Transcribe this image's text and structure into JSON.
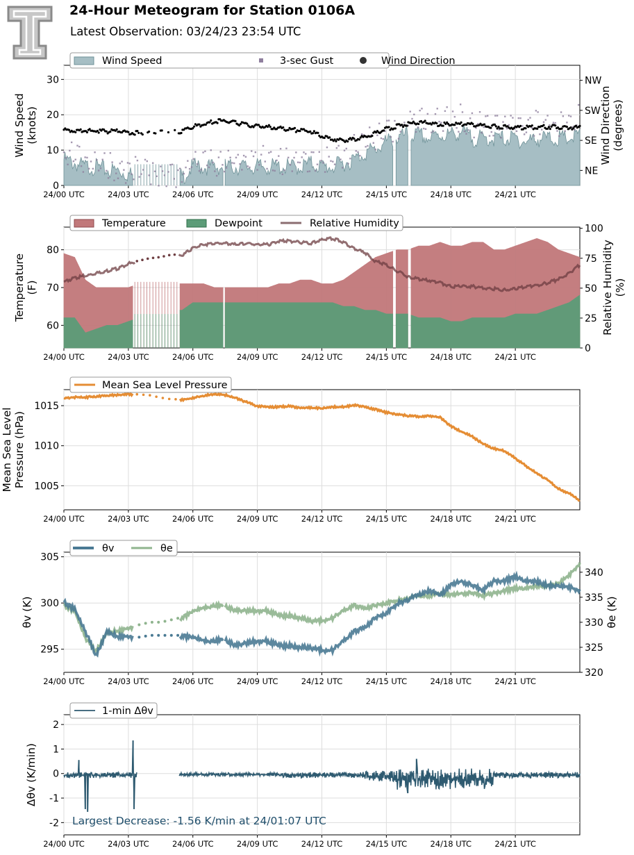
{
  "header": {
    "title": "24-Hour Meteogram for Station 0106A",
    "subtitle": "Latest Observation: 03/24/23 23:54 UTC"
  },
  "colors": {
    "wind_speed": "#a6bec4",
    "wind_speed_line": "#6f9298",
    "gust": "#8f7f9e",
    "wind_direction": "#000000",
    "temperature": "#c1787a",
    "dewpoint": "#5c9c78",
    "relative_humidity": "#6e3e42",
    "pressure": "#e58d34",
    "theta_v": "#4a7a93",
    "theta_e": "#8fb48e",
    "dtheta": "#2e5a70",
    "annotation": "#1f4e6b",
    "grid": "#dddddd"
  },
  "x_tick_labels": [
    "24/00 UTC",
    "24/03 UTC",
    "24/06 UTC",
    "24/09 UTC",
    "24/12 UTC",
    "24/15 UTC",
    "24/18 UTC",
    "24/21 UTC"
  ],
  "chart_data": [
    {
      "type": "area",
      "id": "wind",
      "legend": [
        "Wind Speed",
        "3-sec Gust",
        "Wind Direction"
      ],
      "ylabel": "Wind Speed (knots)",
      "ylabel_lines": [
        "Wind Speed",
        "(knots)"
      ],
      "ylim": [
        0,
        34
      ],
      "yticks": [
        0,
        10,
        20,
        30
      ],
      "y2label_lines": [
        "Wind Direction",
        "(degrees)"
      ],
      "y2lim": [
        0,
        360
      ],
      "y2ticks": [
        {
          "value": 45,
          "label": "NE"
        },
        {
          "value": 135,
          "label": "SE"
        },
        {
          "value": 225,
          "label": "SW"
        },
        {
          "value": 315,
          "label": "NW"
        }
      ],
      "x_hours": [
        0,
        0.5,
        1,
        1.5,
        2,
        2.5,
        3,
        3.5,
        4,
        4.5,
        5,
        5.5,
        6,
        6.5,
        7,
        7.5,
        8,
        8.5,
        9,
        9.5,
        10,
        10.5,
        11,
        11.5,
        12,
        12.5,
        13,
        13.5,
        14,
        14.5,
        15,
        15.5,
        16,
        16.5,
        17,
        17.5,
        18,
        18.5,
        19,
        19.5,
        20,
        20.5,
        21,
        21.5,
        22,
        22.5,
        23,
        23.5,
        24
      ],
      "series": [
        {
          "name": "Wind Speed",
          "values": [
            8,
            7,
            6,
            6,
            5,
            5,
            4,
            3,
            3,
            3,
            3,
            3,
            6,
            6,
            6,
            6,
            6,
            6,
            6,
            6,
            6,
            6,
            6,
            7,
            6,
            6,
            7,
            8,
            10,
            11,
            13,
            14,
            15,
            15,
            14,
            15,
            15,
            16,
            14,
            14,
            14,
            14,
            14,
            13,
            14,
            14,
            14,
            14,
            15
          ]
        },
        {
          "name": "3-sec Gust",
          "values": [
            11,
            10,
            9,
            8,
            7,
            7,
            6,
            6,
            5,
            5,
            5,
            5,
            8,
            8,
            8,
            8,
            8,
            9,
            9,
            9,
            8,
            9,
            9,
            9,
            8,
            9,
            10,
            12,
            14,
            15,
            17,
            18,
            19,
            20,
            19,
            20,
            20,
            21,
            19,
            19,
            19,
            19,
            19,
            18,
            19,
            19,
            19,
            20,
            22
          ]
        },
        {
          "name": "Wind Direction",
          "values": [
            170,
            168,
            166,
            167,
            165,
            165,
            162,
            160,
            160,
            162,
            163,
            165,
            180,
            185,
            195,
            196,
            190,
            185,
            180,
            178,
            175,
            170,
            168,
            165,
            150,
            142,
            138,
            140,
            148,
            160,
            172,
            180,
            188,
            192,
            190,
            185,
            188,
            187,
            185,
            183,
            180,
            178,
            175,
            176,
            178,
            178,
            178,
            177,
            176
          ]
        }
      ],
      "gaps": [
        [
          3.2,
          5.35
        ],
        [
          7.4,
          7.48
        ],
        [
          15.35,
          15.42
        ],
        [
          16.05,
          16.12
        ]
      ]
    },
    {
      "type": "area",
      "id": "temperature",
      "legend": [
        "Temperature",
        "Dewpoint",
        "Relative Humidity"
      ],
      "ylabel_lines": [
        "Temperature",
        "(F)"
      ],
      "ylim": [
        54,
        86
      ],
      "yticks": [
        60,
        70,
        80
      ],
      "y2label_lines": [
        "Relative Humidity",
        "(%)"
      ],
      "y2lim": [
        0,
        101
      ],
      "y2ticks": [
        0,
        25,
        50,
        75,
        100
      ],
      "x_hours": [
        0,
        0.5,
        1,
        1.5,
        2,
        2.5,
        3,
        3.5,
        4,
        4.5,
        5,
        5.5,
        6,
        6.5,
        7,
        7.5,
        8,
        8.5,
        9,
        9.5,
        10,
        10.5,
        11,
        11.5,
        12,
        12.5,
        13,
        13.5,
        14,
        14.5,
        15,
        15.5,
        16,
        16.5,
        17,
        17.5,
        18,
        18.5,
        19,
        19.5,
        20,
        20.5,
        21,
        21.5,
        22,
        22.5,
        23,
        23.5,
        24
      ],
      "series": [
        {
          "name": "Temperature",
          "values": [
            79,
            78,
            72,
            70,
            70,
            70,
            70,
            71,
            71,
            71,
            71,
            71,
            71,
            71,
            70,
            70,
            70,
            70,
            70,
            70,
            71,
            71,
            72,
            72,
            71,
            71,
            72,
            74,
            76,
            78,
            79,
            80,
            80,
            81,
            81,
            82,
            81,
            81,
            82,
            82,
            80,
            80,
            81,
            82,
            83,
            82,
            80,
            79,
            78
          ]
        },
        {
          "name": "Dewpoint",
          "values": [
            62,
            62,
            58,
            59,
            60,
            60,
            61,
            62,
            63,
            64,
            64,
            64,
            66,
            66,
            66,
            66,
            66,
            66,
            66,
            66,
            66,
            66,
            66,
            66,
            66,
            66,
            65,
            65,
            64,
            64,
            63,
            63,
            63,
            62,
            62,
            62,
            61,
            61,
            62,
            62,
            62,
            62,
            63,
            63,
            63,
            64,
            65,
            66,
            68
          ]
        },
        {
          "name": "Relative Humidity",
          "values": [
            56,
            59,
            61,
            63,
            65,
            67,
            71,
            73,
            75,
            76,
            78,
            78,
            84,
            87,
            88,
            88,
            87,
            88,
            87,
            87,
            90,
            90,
            89,
            88,
            91,
            92,
            89,
            84,
            80,
            73,
            70,
            65,
            60,
            58,
            57,
            55,
            52,
            52,
            52,
            51,
            50,
            49,
            50,
            52,
            53,
            55,
            58,
            63,
            70
          ]
        }
      ],
      "gaps": [
        [
          3.2,
          5.35
        ],
        [
          7.4,
          7.48
        ],
        [
          15.35,
          15.42
        ],
        [
          16.05,
          16.12
        ]
      ]
    },
    {
      "type": "line",
      "id": "pressure",
      "legend": [
        "Mean Sea Level Pressure"
      ],
      "ylabel_lines": [
        "Mean Sea Level",
        "Pressure (hPa)"
      ],
      "ylim": [
        1002,
        1017
      ],
      "yticks": [
        1005,
        1010,
        1015
      ],
      "x_hours": [
        0,
        0.5,
        1,
        1.5,
        2,
        2.5,
        3,
        3.5,
        4,
        4.5,
        5,
        5.5,
        6,
        6.5,
        7,
        7.5,
        8,
        8.5,
        9,
        9.5,
        10,
        10.5,
        11,
        11.5,
        12,
        12.5,
        13,
        13.5,
        14,
        14.5,
        15,
        15.5,
        16,
        16.5,
        17,
        17.5,
        18,
        18.5,
        19,
        19.5,
        20,
        20.5,
        21,
        21.5,
        22,
        22.5,
        23,
        23.5,
        24
      ],
      "series": [
        {
          "name": "Mean Sea Level Pressure",
          "values": [
            1016.0,
            1016.1,
            1016.1,
            1016.2,
            1016.3,
            1016.4,
            1016.5,
            1016.4,
            1016.3,
            1016.0,
            1015.8,
            1015.8,
            1016.0,
            1016.3,
            1016.5,
            1016.4,
            1016.0,
            1015.5,
            1015.0,
            1014.9,
            1014.9,
            1015.0,
            1014.8,
            1014.8,
            1014.7,
            1014.9,
            1014.9,
            1015.1,
            1014.9,
            1014.6,
            1014.2,
            1014.0,
            1013.8,
            1013.7,
            1013.8,
            1013.6,
            1012.5,
            1011.8,
            1011.2,
            1010.3,
            1009.7,
            1009.4,
            1008.5,
            1007.5,
            1006.6,
            1005.8,
            1004.7,
            1004.1,
            1003.2
          ]
        }
      ],
      "gaps": [
        [
          3.2,
          5.35
        ]
      ]
    },
    {
      "type": "line",
      "id": "theta",
      "legend": [
        "θv",
        "θe"
      ],
      "ylabel": "θv (K)",
      "ylim": [
        292.5,
        305.5
      ],
      "yticks": [
        295,
        300,
        305
      ],
      "y2label": "θe (K)",
      "y2lim": [
        320,
        344
      ],
      "y2ticks": [
        320,
        325,
        330,
        335,
        340
      ],
      "x_hours": [
        0,
        0.5,
        1,
        1.5,
        2,
        2.5,
        3,
        3.5,
        4,
        4.5,
        5,
        5.5,
        6,
        6.5,
        7,
        7.5,
        8,
        8.5,
        9,
        9.5,
        10,
        10.5,
        11,
        11.5,
        12,
        12.5,
        13,
        13.5,
        14,
        14.5,
        15,
        15.5,
        16,
        16.5,
        17,
        17.5,
        18,
        18.5,
        19,
        19.5,
        20,
        20.5,
        21,
        21.5,
        22,
        22.5,
        23,
        23.5,
        24
      ],
      "series": [
        {
          "name": "θv",
          "values": [
            300.2,
            299.5,
            297.0,
            294.5,
            297.0,
            296.5,
            296.5,
            296.3,
            296.5,
            296.5,
            296.5,
            296.5,
            296.5,
            296.0,
            296.0,
            296.2,
            295.5,
            295.8,
            296.0,
            296.0,
            295.5,
            295.5,
            295.3,
            295.3,
            295.0,
            295.0,
            296.0,
            297.0,
            297.5,
            298.5,
            299.0,
            300.0,
            300.5,
            301.0,
            301.5,
            301.0,
            302.0,
            302.5,
            302.0,
            301.5,
            302.5,
            302.5,
            303.0,
            302.5,
            302.5,
            302.0,
            302.0,
            301.8,
            301.5
          ]
        },
        {
          "name": "θe",
          "values": [
            333.5,
            332.5,
            327.0,
            324.5,
            328.0,
            328.5,
            329.0,
            329.5,
            330.0,
            330.0,
            330.5,
            331.0,
            332.5,
            333.0,
            333.5,
            333.5,
            332.5,
            332.5,
            332.5,
            332.5,
            331.5,
            331.5,
            331.0,
            330.5,
            330.5,
            331.0,
            332.5,
            333.5,
            333.0,
            333.5,
            334.0,
            334.5,
            335.0,
            335.5,
            335.5,
            336.0,
            335.5,
            336.0,
            336.0,
            335.5,
            336.0,
            336.5,
            337.0,
            337.0,
            337.5,
            337.5,
            338.0,
            339.5,
            342.0
          ]
        }
      ],
      "gaps": [
        [
          3.2,
          5.35
        ],
        [
          7.4,
          7.48
        ]
      ]
    },
    {
      "type": "line",
      "id": "dtheta",
      "legend": [
        "1-min Δθv"
      ],
      "ylabel": "Δθv (K/min)",
      "ylim": [
        -2.5,
        2.4
      ],
      "yticks": [
        -2,
        -1,
        0,
        1,
        2
      ],
      "annotation": "Largest Decrease: -1.56 K/min at 24/01:07 UTC",
      "spikes": [
        {
          "x": 0.7,
          "value": 0.55
        },
        {
          "x": 1.0,
          "value": -1.45
        },
        {
          "x": 1.1,
          "value": -1.56
        },
        {
          "x": 3.22,
          "value": 1.35
        },
        {
          "x": 3.26,
          "value": -1.45
        },
        {
          "x": 16.0,
          "value": -0.8
        },
        {
          "x": 16.4,
          "value": 0.6
        }
      ],
      "gaps": [
        [
          3.4,
          5.35
        ]
      ]
    }
  ]
}
